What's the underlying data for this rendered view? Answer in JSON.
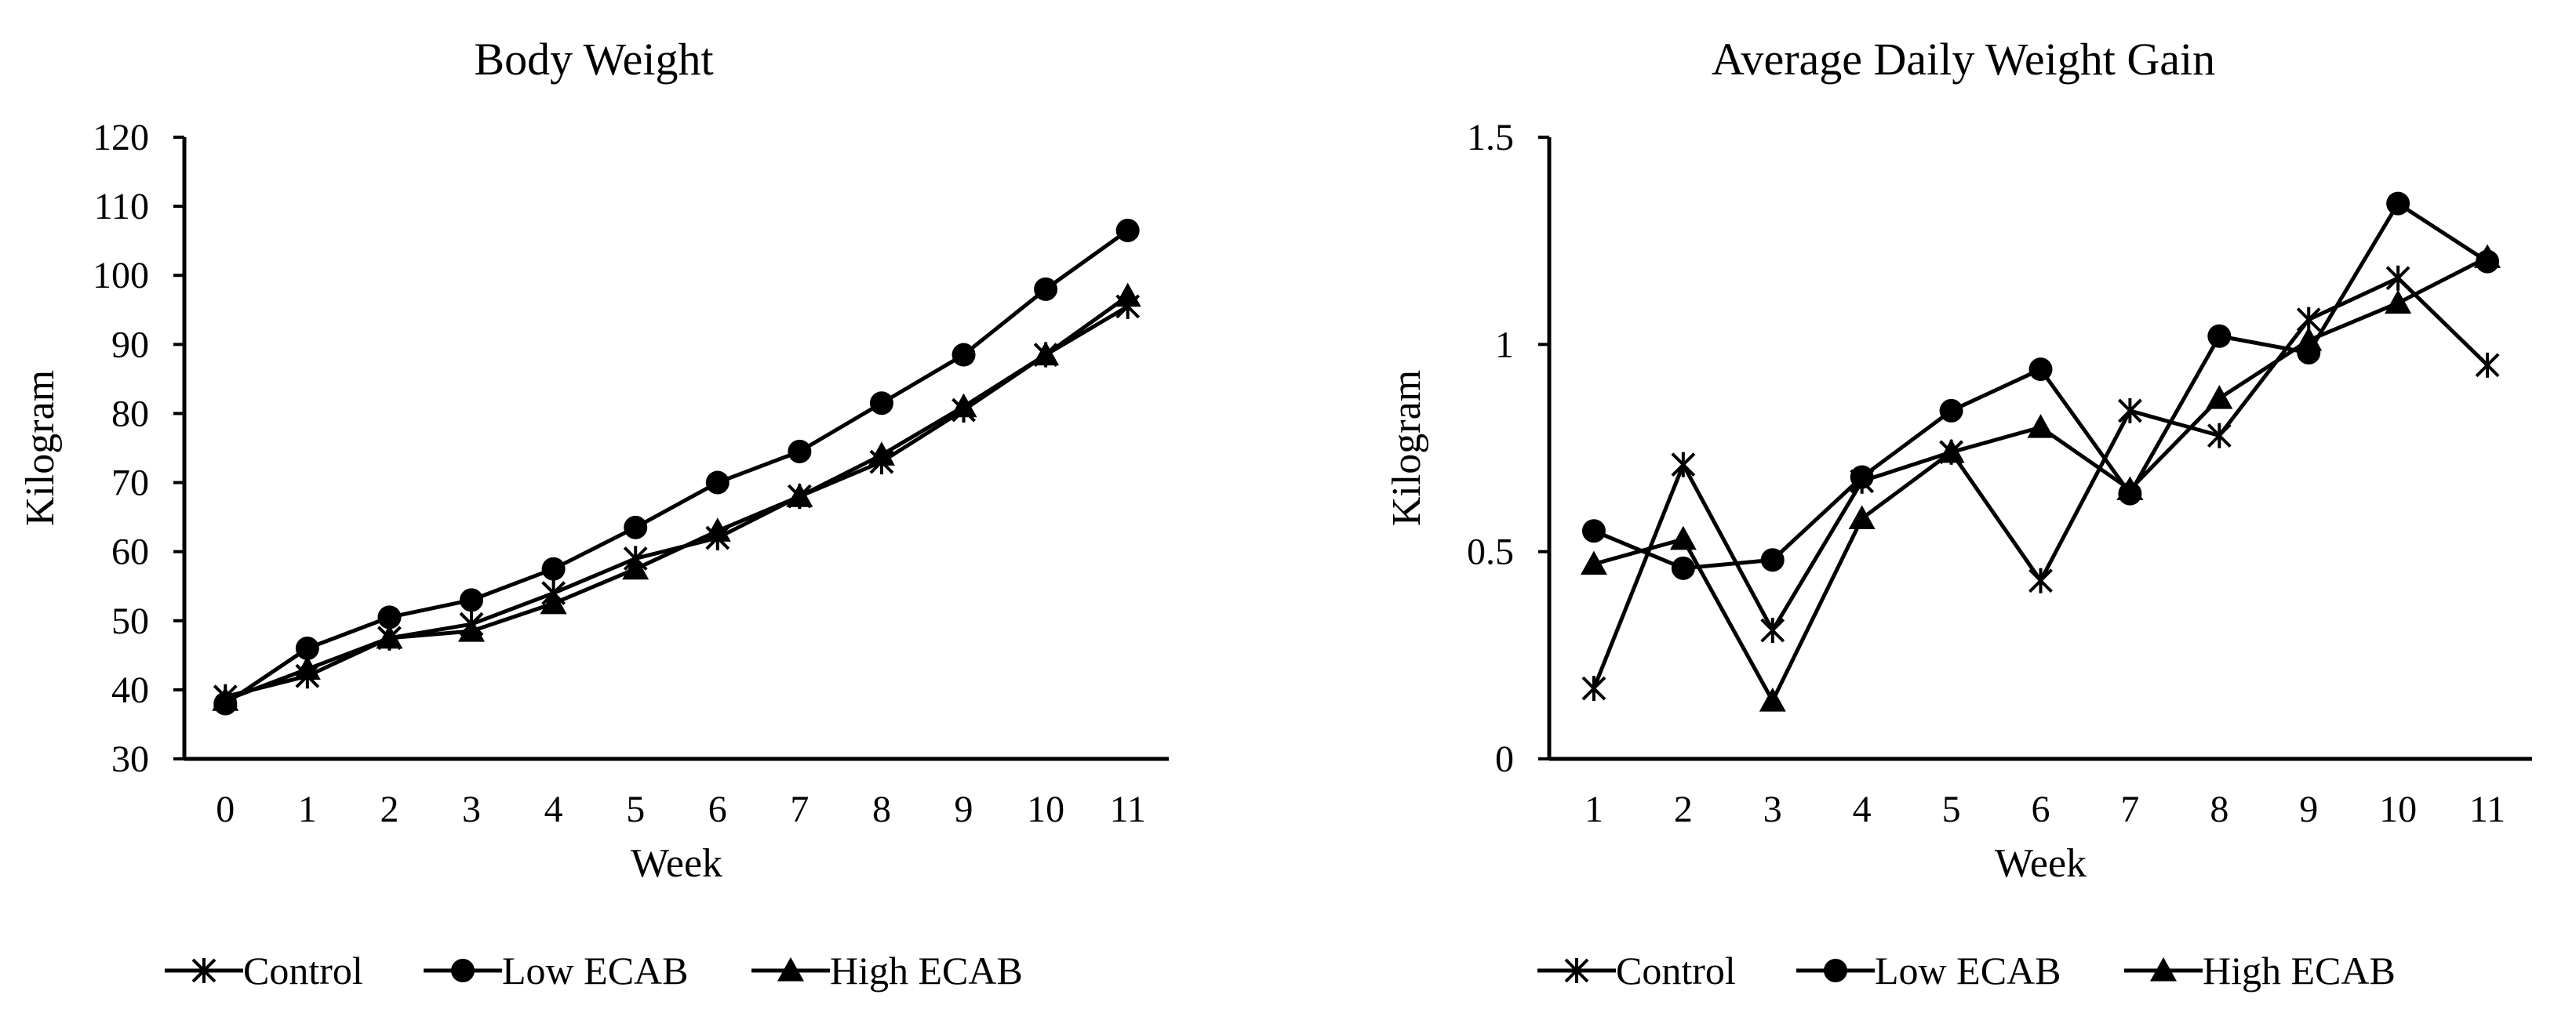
{
  "chart_data": [
    {
      "type": "line",
      "title": "Body Weight",
      "xlabel": "Week",
      "ylabel": "Kilogram",
      "x": [
        0,
        1,
        2,
        3,
        4,
        5,
        6,
        7,
        8,
        9,
        10,
        11
      ],
      "ylim": [
        30,
        120
      ],
      "yticks": [
        30,
        40,
        50,
        60,
        70,
        80,
        90,
        100,
        110,
        120
      ],
      "ytick_labels": [
        "30",
        "40",
        "50",
        "60",
        "70",
        "80",
        "90",
        "100",
        "110",
        "120"
      ],
      "xtick_labels": [
        "0",
        "1",
        "2",
        "3",
        "4",
        "5",
        "6",
        "7",
        "8",
        "9",
        "10",
        "11"
      ],
      "grid": false,
      "legend_position": "bottom",
      "series": [
        {
          "name": "Control",
          "marker": "star",
          "values": [
            39.0,
            42.0,
            47.5,
            49.5,
            54.0,
            59.0,
            62.0,
            68.0,
            73.0,
            80.5,
            88.5,
            95.5
          ]
        },
        {
          "name": "Low ECAB",
          "marker": "circle",
          "values": [
            38.0,
            46.0,
            50.5,
            53.0,
            57.5,
            63.5,
            70.0,
            74.5,
            81.5,
            88.5,
            98.0,
            106.5
          ]
        },
        {
          "name": "High ECAB",
          "marker": "triangle",
          "values": [
            38.5,
            43.0,
            47.5,
            48.5,
            52.5,
            57.5,
            63.0,
            68.0,
            74.0,
            81.0,
            88.5,
            97.0
          ]
        }
      ]
    },
    {
      "type": "line",
      "title": "Average Daily Weight Gain",
      "xlabel": "Week",
      "ylabel": "Kilogram",
      "x": [
        1,
        2,
        3,
        4,
        5,
        6,
        7,
        8,
        9,
        10,
        11
      ],
      "ylim": [
        0,
        1.5
      ],
      "yticks": [
        0,
        0.5,
        1,
        1.5
      ],
      "ytick_labels": [
        "0",
        "0.5",
        "1",
        "1.5"
      ],
      "xtick_labels": [
        "1",
        "2",
        "3",
        "4",
        "5",
        "6",
        "7",
        "8",
        "9",
        "10",
        "11"
      ],
      "grid": false,
      "legend_position": "bottom",
      "series": [
        {
          "name": "Control",
          "marker": "star",
          "values": [
            0.17,
            0.71,
            0.31,
            0.67,
            0.74,
            0.43,
            0.84,
            0.78,
            1.06,
            1.16,
            0.95
          ]
        },
        {
          "name": "Low ECAB",
          "marker": "circle",
          "values": [
            0.55,
            0.46,
            0.48,
            0.68,
            0.84,
            0.94,
            0.64,
            1.02,
            0.98,
            1.34,
            1.2
          ]
        },
        {
          "name": "High ECAB",
          "marker": "triangle",
          "values": [
            0.47,
            0.53,
            0.14,
            0.58,
            0.74,
            0.8,
            0.65,
            0.87,
            1.01,
            1.1,
            1.21
          ]
        }
      ]
    }
  ]
}
